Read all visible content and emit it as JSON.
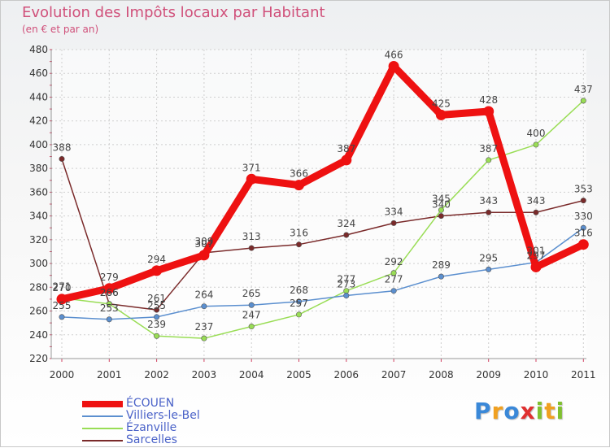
{
  "chart_data": {
    "type": "line",
    "title": "Evolution des Impôts locaux par Habitant",
    "subtitle": "(en € et par an)",
    "xlabel": "",
    "ylabel": "",
    "categories": [
      "2000",
      "2001",
      "2002",
      "2003",
      "2004",
      "2005",
      "2006",
      "2007",
      "2008",
      "2009",
      "2010",
      "2011"
    ],
    "ylim": [
      220,
      480
    ],
    "yticks": [
      220,
      240,
      260,
      280,
      300,
      320,
      340,
      360,
      380,
      400,
      420,
      440,
      460,
      480
    ],
    "grid": true,
    "series": [
      {
        "name": "ECOUEN",
        "color": "#ee1111",
        "values": [
          270,
          279,
          294,
          307,
          371,
          366,
          387,
          466,
          425,
          428,
          297,
          316
        ]
      },
      {
        "name": "Villiers-le-Bel",
        "color": "#5b8fcf",
        "values": [
          255,
          253,
          255,
          264,
          265,
          268,
          273,
          277,
          289,
          295,
          301,
          330
        ]
      },
      {
        "name": "Ezanville",
        "color": "#99dd55",
        "values": [
          271,
          266,
          239,
          237,
          247,
          257,
          277,
          292,
          345,
          387,
          400,
          437
        ]
      },
      {
        "name": "Sarcelles",
        "color": "#7a2a2a",
        "values": [
          388,
          266,
          261,
          309,
          313,
          316,
          324,
          334,
          340,
          343,
          343,
          353
        ]
      }
    ],
    "labels": {
      "ECOUEN": [
        "270",
        "279",
        "294",
        "307",
        "371",
        "366",
        "387",
        "466",
        "425",
        "428",
        "297",
        "316"
      ],
      "Villiers-le-Bel": [
        "255",
        "253",
        "255",
        "264",
        "265",
        "268",
        "273",
        "277",
        "289",
        "295",
        "301",
        "330"
      ],
      "Ezanville": [
        "271",
        "266",
        "239",
        "237",
        "247",
        "257",
        "277",
        "292",
        "345",
        "387",
        "400",
        "437"
      ],
      "Sarcelles": [
        "388",
        "266",
        "261",
        "309",
        "313",
        "316",
        "324",
        "334",
        "340",
        "343",
        "343",
        "353"
      ]
    }
  },
  "legend": [
    {
      "label": "ÉCOUEN",
      "color": "#ee1111"
    },
    {
      "label": "Villiers-le-Bel",
      "color": "#5b8fcf"
    },
    {
      "label": "Ézanville",
      "color": "#99dd55"
    },
    {
      "label": "Sarcelles",
      "color": "#7a2a2a"
    }
  ],
  "logo": {
    "letters": [
      "P",
      "r",
      "o",
      "x",
      "i",
      "t",
      "i"
    ],
    "colors": [
      "#3a88d8",
      "#f0a020",
      "#3a88d8",
      "#e03030",
      "#80c030",
      "#f0a020",
      "#80c030"
    ]
  }
}
